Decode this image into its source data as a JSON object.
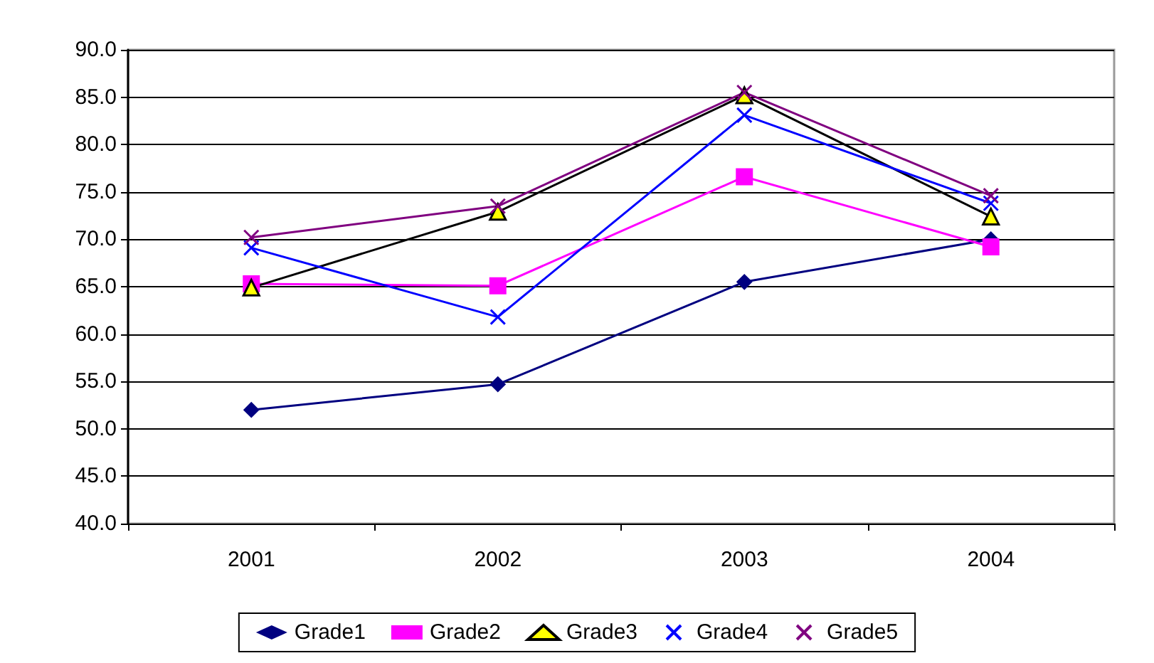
{
  "chart_data": {
    "type": "line",
    "categories": [
      "2001",
      "2002",
      "2003",
      "2004"
    ],
    "series": [
      {
        "name": "Grade1",
        "color": "#000080",
        "marker": "diamond",
        "values": [
          52.0,
          54.7,
          65.5,
          70.0
        ]
      },
      {
        "name": "Grade2",
        "color": "#ff00ff",
        "marker": "square",
        "values": [
          65.3,
          65.1,
          76.6,
          69.2
        ]
      },
      {
        "name": "Grade3",
        "color": "#000000",
        "marker": "triangle",
        "values": [
          64.9,
          72.9,
          85.2,
          72.4
        ]
      },
      {
        "name": "Grade4",
        "color": "#0000ff",
        "marker": "cross",
        "values": [
          69.1,
          61.8,
          83.1,
          73.8
        ]
      },
      {
        "name": "Grade5",
        "color": "#800080",
        "marker": "cross",
        "values": [
          70.2,
          73.5,
          85.5,
          74.6
        ]
      }
    ],
    "ylim": [
      40,
      90
    ],
    "yticks": [
      {
        "value": 40,
        "label": "40.0"
      },
      {
        "value": 45,
        "label": "45.0"
      },
      {
        "value": 50,
        "label": "50.0"
      },
      {
        "value": 55,
        "label": "55.0"
      },
      {
        "value": 60,
        "label": "60.0"
      },
      {
        "value": 65,
        "label": "65.0"
      },
      {
        "value": 70,
        "label": "70.0"
      },
      {
        "value": 75,
        "label": "75.0"
      },
      {
        "value": 80,
        "label": "80.0"
      },
      {
        "value": 85,
        "label": "85.0"
      },
      {
        "value": 90,
        "label": "90.0"
      }
    ],
    "grid": "y",
    "legend": "bottom",
    "line_style": "solid"
  }
}
